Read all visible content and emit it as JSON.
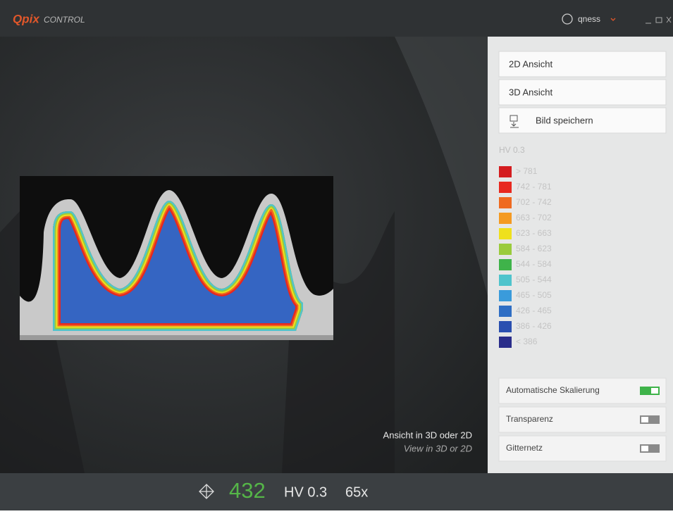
{
  "header": {
    "brand": "Qpix",
    "product": "CONTROL",
    "user": "qness"
  },
  "panel": {
    "buttons": [
      "2D Ansicht",
      "3D Ansicht",
      "Bild speichern"
    ],
    "legend": {
      "title": "HV 0.3",
      "items": [
        {
          "label": "> 781",
          "color": "#d41c1f"
        },
        {
          "label": "742 - 781",
          "color": "#e8281f"
        },
        {
          "label": "702 - 742",
          "color": "#ef6a20"
        },
        {
          "label": "663 - 702",
          "color": "#f49a22"
        },
        {
          "label": "623 - 663",
          "color": "#efe01c"
        },
        {
          "label": "584 - 623",
          "color": "#9acb3c"
        },
        {
          "label": "544 - 584",
          "color": "#3fb34a"
        },
        {
          "label": "505 - 544",
          "color": "#4fc4cc"
        },
        {
          "label": "465 - 505",
          "color": "#3a9bdb"
        },
        {
          "label": "426 - 465",
          "color": "#2f6ec4"
        },
        {
          "label": "386 - 426",
          "color": "#2a4fb0"
        },
        {
          "label": "< 386",
          "color": "#2a2d8a"
        }
      ]
    },
    "toggles": [
      {
        "label": "Automatische Skalierung",
        "enabled": true
      },
      {
        "label": "Transparenz",
        "enabled": false
      },
      {
        "label": "Gitternetz",
        "enabled": false
      }
    ]
  },
  "caption": {
    "title": "Ansicht in 3D oder 2D",
    "subtitle": "View in 3D or 2D"
  },
  "footer": {
    "value": "432",
    "unit": "HV 0.3",
    "zoom": "65x"
  }
}
